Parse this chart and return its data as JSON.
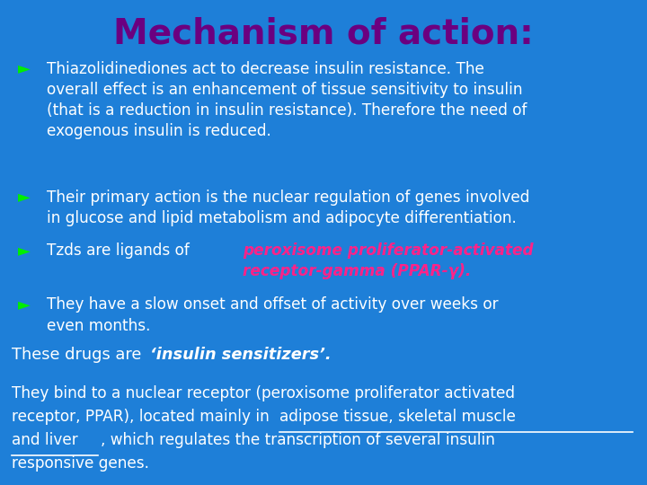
{
  "title": "Mechanism of action:",
  "title_color": "#6B0080",
  "title_fontsize": 28,
  "bg_color": "#1E7FD8",
  "text_color": "#FFFFFF",
  "bullet_color": "#00EE00",
  "red_text_color": "#FF2288",
  "bullet_symbol": "►",
  "bullet1": "Thiazolidinediones act to decrease insulin resistance. The\noverall effect is an enhancement of tissue sensitivity to insulin\n(that is a reduction in insulin resistance). Therefore the need of\nexogenous insulin is reduced.",
  "bullet2": "Their primary action is the nuclear regulation of genes involved\nin glucose and lipid metabolism and adipocyte differentiation.",
  "bullet3_normal": "Tzds are ligands of ",
  "bullet3_red": "peroxisome proliferator-activated\nreceptor-gamma (PPAR-γ).",
  "bullet4": "They have a slow onset and offset of activity over weeks or\neven months.",
  "bottom_line_normal": "These drugs are ",
  "bottom_line_bold": "‘insulin sensitizers’.",
  "bottom_para1": "They bind to a nuclear receptor (peroxisome proliferator activated",
  "bottom_para2": "receptor, PPAR), located mainly in ",
  "bottom_para2_underline": "adipose tissue, skeletal muscle",
  "bottom_para3_underline": "and liver",
  "bottom_para3_end": ", which regulates the transcription of several insulin",
  "bottom_para4": "responsive genes.",
  "figsize": [
    7.2,
    5.4
  ],
  "dpi": 100
}
